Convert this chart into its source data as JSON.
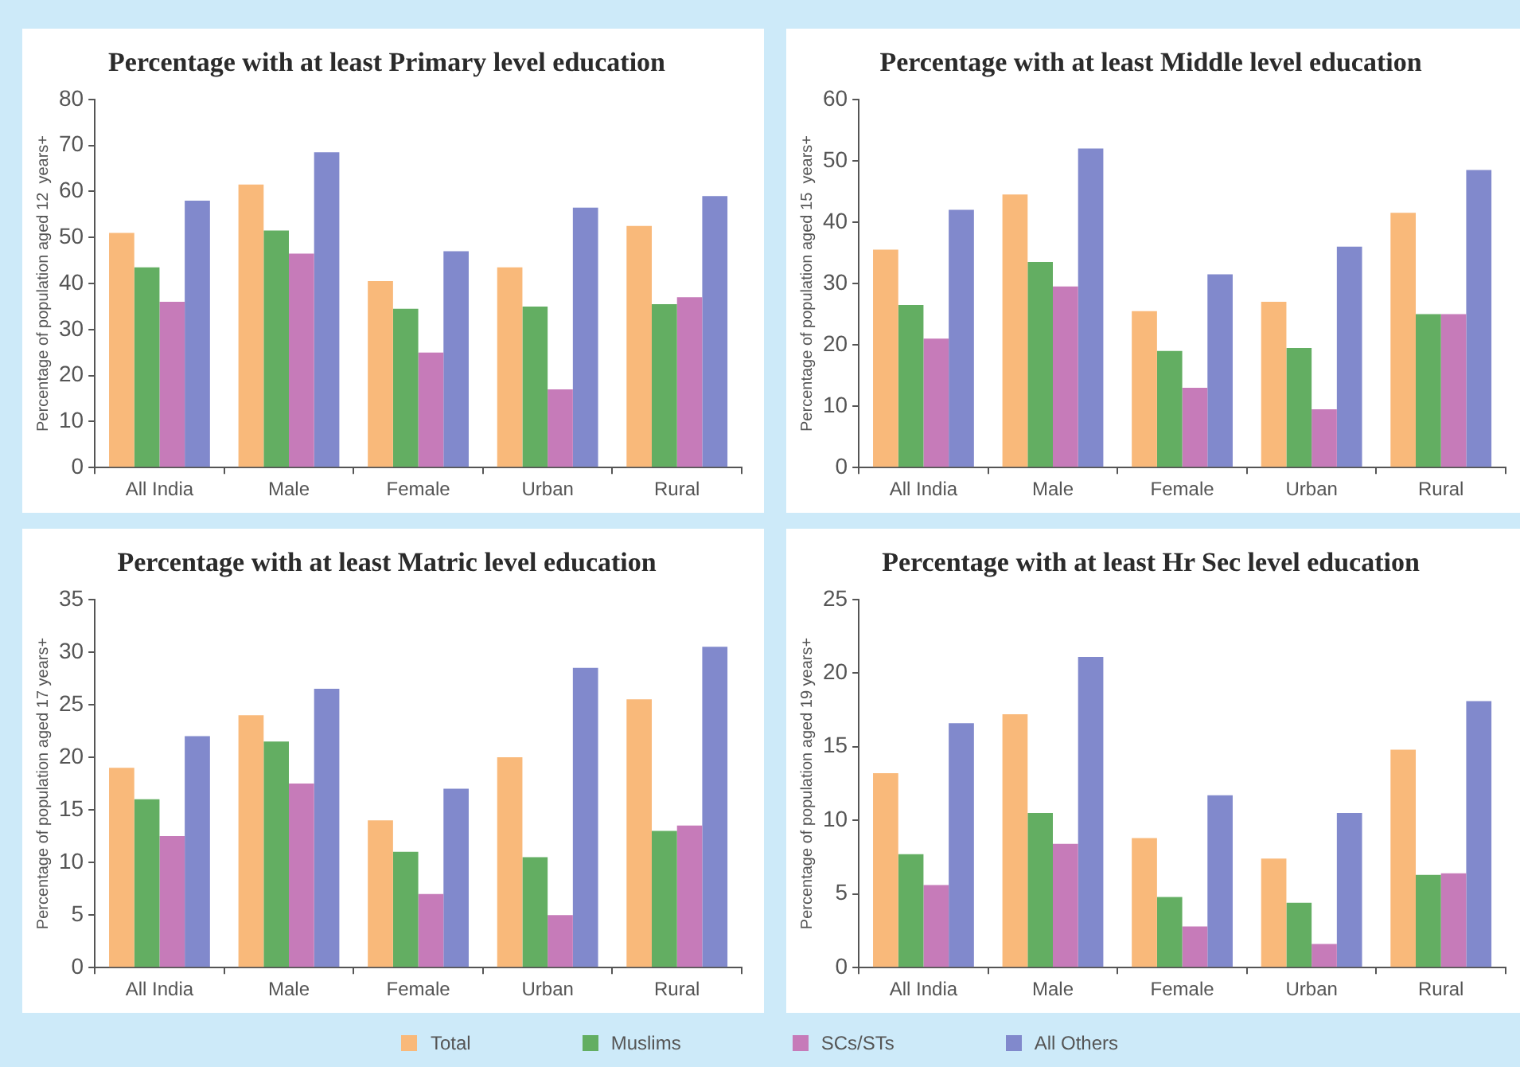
{
  "chart_data": [
    {
      "type": "bar",
      "title": "Percentage with at least Primary level education",
      "ylabel": "Percentage of population aged 12  years+",
      "categories": [
        "All India",
        "Male",
        "Female",
        "Urban",
        "Rural"
      ],
      "ylim": [
        0,
        80
      ],
      "yticks": [
        0,
        10,
        20,
        30,
        40,
        50,
        60,
        70,
        80
      ],
      "legend": "bottom",
      "series": [
        {
          "name": "Total",
          "color": "#f9b97a",
          "values": [
            51,
            61.5,
            40.5,
            43.5,
            52.5
          ]
        },
        {
          "name": "Muslims",
          "color": "#63ae62",
          "values": [
            43.5,
            51.5,
            34.5,
            35,
            35.5
          ]
        },
        {
          "name": "SCs/STs",
          "color": "#c67bb9",
          "values": [
            36,
            46.5,
            25,
            17,
            37
          ]
        },
        {
          "name": "All Others",
          "color": "#8189cc",
          "values": [
            58,
            68.5,
            47,
            56.5,
            59
          ]
        }
      ]
    },
    {
      "type": "bar",
      "title": "Percentage with at least Middle level education",
      "ylabel": "Percentage of population aged 15  years+",
      "categories": [
        "All India",
        "Male",
        "Female",
        "Urban",
        "Rural"
      ],
      "ylim": [
        0,
        60
      ],
      "yticks": [
        0,
        10,
        20,
        30,
        40,
        50,
        60
      ],
      "series": [
        {
          "color": "#f9b97a",
          "values": [
            35.5,
            44.5,
            25.5,
            27,
            41.5
          ]
        },
        {
          "color": "#63ae62",
          "values": [
            26.5,
            33.5,
            19,
            19.5,
            25
          ]
        },
        {
          "color": "#c67bb9",
          "values": [
            21,
            29.5,
            13,
            9.5,
            25
          ]
        },
        {
          "color": "#8189cc",
          "values": [
            42,
            52,
            31.5,
            36,
            48.5
          ]
        }
      ]
    },
    {
      "type": "bar",
      "title": "Percentage with at least Matric level education",
      "ylabel": "Percentage of population aged 17 years+",
      "categories": [
        "All India",
        "Male",
        "Female",
        "Urban",
        "Rural"
      ],
      "ylim": [
        0,
        35
      ],
      "yticks": [
        0,
        5,
        10,
        15,
        20,
        25,
        30,
        35
      ],
      "series": [
        {
          "color": "#f9b97a",
          "values": [
            19,
            24,
            14,
            20,
            25.5
          ]
        },
        {
          "color": "#63ae62",
          "values": [
            16,
            21.5,
            11,
            10.5,
            13
          ]
        },
        {
          "color": "#c67bb9",
          "values": [
            12.5,
            17.5,
            7,
            5,
            13.5
          ]
        },
        {
          "color": "#8189cc",
          "values": [
            22,
            26.5,
            17,
            28.5,
            30.5
          ]
        }
      ]
    },
    {
      "type": "bar",
      "title": "Percentage with at least Hr Sec level education",
      "ylabel": "Percentage of population aged 19 years+",
      "categories": [
        "All India",
        "Male",
        "Female",
        "Urban",
        "Rural"
      ],
      "ylim": [
        0,
        25
      ],
      "yticks": [
        0,
        5,
        10,
        15,
        20,
        25
      ],
      "series": [
        {
          "color": "#f9b97a",
          "values": [
            13.2,
            17.2,
            8.8,
            7.4,
            14.8
          ]
        },
        {
          "color": "#63ae62",
          "values": [
            7.7,
            10.5,
            4.8,
            4.4,
            6.3
          ]
        },
        {
          "color": "#c67bb9",
          "values": [
            5.6,
            8.4,
            2.8,
            1.6,
            6.4
          ]
        },
        {
          "color": "#8189cc",
          "values": [
            16.6,
            21.1,
            11.7,
            10.5,
            18.1
          ]
        }
      ]
    }
  ]
}
